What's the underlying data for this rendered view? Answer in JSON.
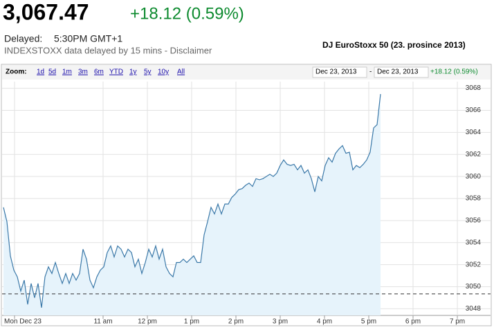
{
  "header": {
    "price": "3,067.47",
    "change": "+18.12 (0.59%)",
    "delayed_label": "Delayed:",
    "time": "5:30PM GMT+1",
    "note": "INDEXSTOXX data delayed by 15 mins - Disclaimer",
    "caption": "DJ EuroStoxx 50 (23. prosince 2013)"
  },
  "toolbar": {
    "zoom_label": "Zoom:",
    "zooms": [
      "1d",
      "5d",
      "1m",
      "3m",
      "6m",
      "YTD",
      "1y",
      "5y",
      "10y",
      "All"
    ],
    "from": "Dec 23, 2013",
    "sep": "-",
    "to": "Dec 23, 2013",
    "change": "+18.12 (0.59%)"
  },
  "chart_data": {
    "type": "line",
    "color": "#3a78a8",
    "fill": "#e6f3fb",
    "grid": true,
    "previous_close": 3049.35,
    "xlim": [
      8.75,
      19.5
    ],
    "ylim": [
      3047.4,
      3068.6
    ],
    "yticks": [
      3048,
      3050,
      3052,
      3054,
      3056,
      3058,
      3060,
      3062,
      3064,
      3066,
      3068
    ],
    "xticks": [
      {
        "value": 9,
        "label": "Mon Dec 23"
      },
      {
        "value": 11,
        "label": "11 am"
      },
      {
        "value": 12,
        "label": "12 pm"
      },
      {
        "value": 13,
        "label": "1 pm"
      },
      {
        "value": 14,
        "label": "2 pm"
      },
      {
        "value": 15,
        "label": "3 pm"
      },
      {
        "value": 16,
        "label": "4 pm"
      },
      {
        "value": 17,
        "label": "5 pm"
      },
      {
        "value": 18,
        "label": "6 pm"
      },
      {
        "value": 19,
        "label": "7 pm"
      }
    ],
    "x": [
      8.75,
      8.828,
      8.906,
      8.984,
      9.063,
      9.141,
      9.219,
      9.297,
      9.375,
      9.453,
      9.531,
      9.609,
      9.688,
      9.766,
      9.844,
      9.922,
      10,
      10.078,
      10.156,
      10.234,
      10.313,
      10.391,
      10.469,
      10.547,
      10.625,
      10.703,
      10.781,
      10.859,
      10.938,
      11.016,
      11.094,
      11.172,
      11.25,
      11.328,
      11.406,
      11.484,
      11.563,
      11.641,
      11.719,
      11.797,
      11.875,
      11.953,
      12.031,
      12.109,
      12.188,
      12.266,
      12.344,
      12.422,
      12.5,
      12.578,
      12.656,
      12.734,
      12.813,
      12.891,
      12.969,
      13.047,
      13.125,
      13.203,
      13.281,
      13.359,
      13.438,
      13.516,
      13.594,
      13.672,
      13.75,
      13.828,
      13.906,
      13.984,
      14.063,
      14.141,
      14.219,
      14.297,
      14.375,
      14.453,
      14.531,
      14.609,
      14.688,
      14.766,
      14.844,
      14.922,
      15,
      15.078,
      15.156,
      15.234,
      15.313,
      15.391,
      15.469,
      15.547,
      15.625,
      15.703,
      15.781,
      15.859,
      15.938,
      16.016,
      16.094,
      16.172,
      16.25,
      16.328,
      16.406,
      16.484,
      16.563,
      16.641,
      16.719,
      16.797,
      16.875,
      16.953,
      17.031,
      17.109,
      17.188,
      17.266
    ],
    "values": [
      3057.2,
      3055.9,
      3052.8,
      3051.5,
      3050.9,
      3049.6,
      3050.6,
      3048.4,
      3050.3,
      3049.0,
      3050.3,
      3048.1,
      3050.9,
      3051.8,
      3051.2,
      3052.2,
      3051.2,
      3050.3,
      3051.2,
      3050.3,
      3051.2,
      3050.6,
      3051.2,
      3053.4,
      3052.5,
      3050.6,
      3049.9,
      3050.9,
      3051.5,
      3051.8,
      3053.1,
      3053.7,
      3052.7,
      3053.7,
      3053.4,
      3052.7,
      3053.4,
      3053.1,
      3051.8,
      3052.5,
      3051.2,
      3052.2,
      3053.4,
      3052.7,
      3053.7,
      3052.5,
      3053.4,
      3051.8,
      3051.2,
      3050.9,
      3052.2,
      3052.2,
      3052.5,
      3052.2,
      3052.5,
      3052.8,
      3052.2,
      3052.2,
      3054.7,
      3055.9,
      3057.2,
      3056.6,
      3057.5,
      3056.6,
      3057.5,
      3057.5,
      3058.1,
      3058.4,
      3058.8,
      3058.9,
      3059.2,
      3059.4,
      3059.1,
      3059.8,
      3059.7,
      3059.8,
      3060.0,
      3060.2,
      3060.0,
      3060.3,
      3061.0,
      3061.5,
      3061.1,
      3061.0,
      3061.1,
      3060.6,
      3061.0,
      3060.3,
      3060.6,
      3059.8,
      3058.6,
      3060.0,
      3059.6,
      3061.0,
      3061.7,
      3061.3,
      3062.1,
      3062.5,
      3062.8,
      3062.1,
      3062.2,
      3060.6,
      3061.0,
      3060.8,
      3061.1,
      3061.5,
      3062.2,
      3064.4,
      3064.7,
      3067.47
    ]
  }
}
